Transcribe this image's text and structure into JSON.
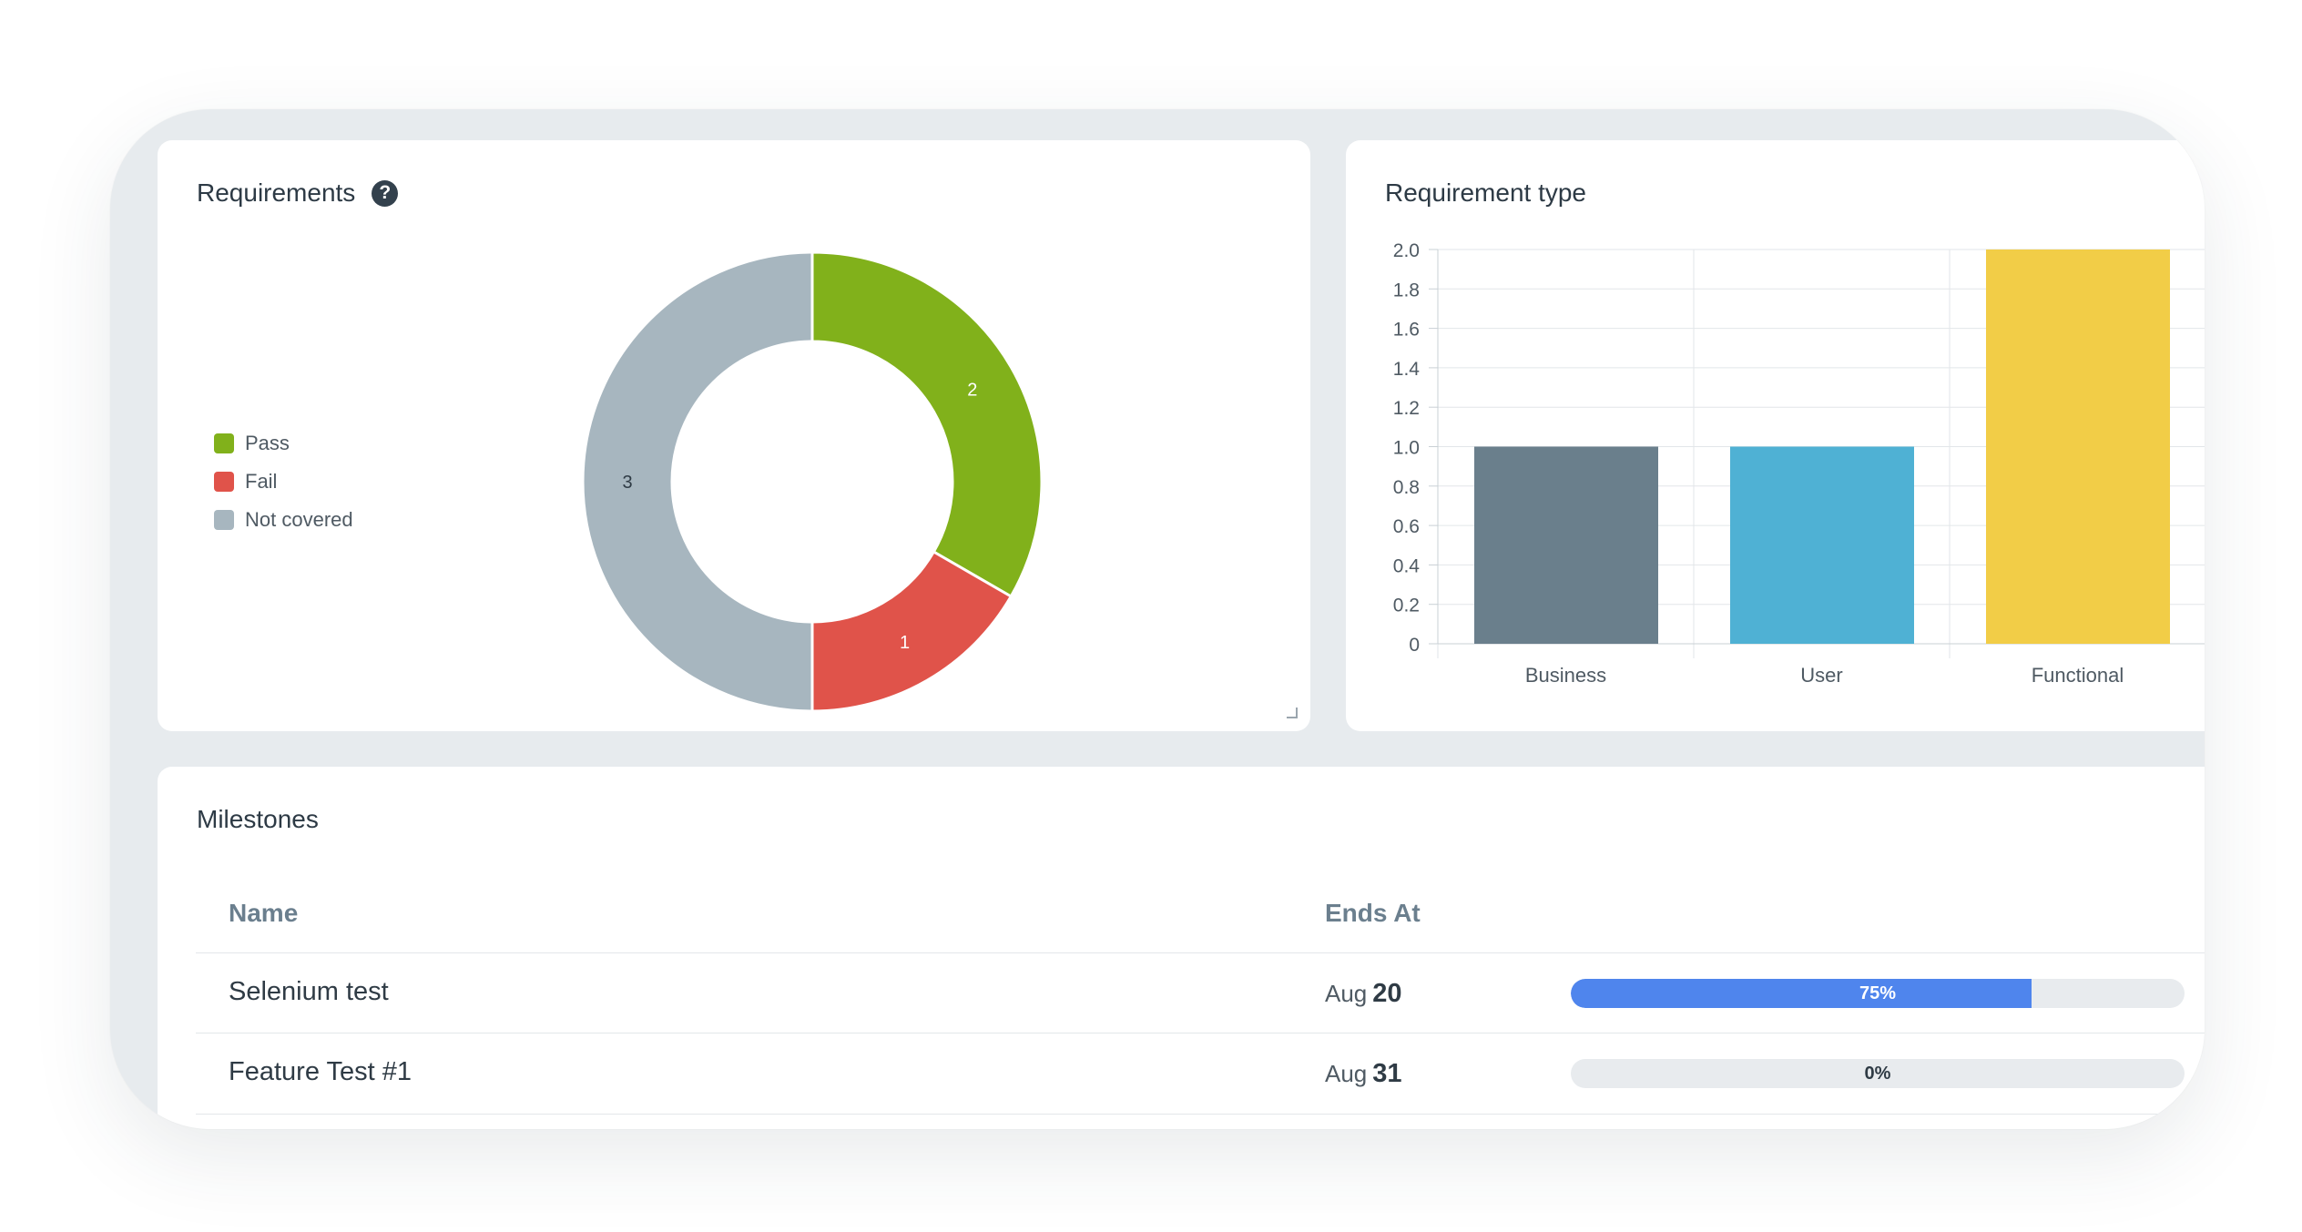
{
  "requirements_card": {
    "title": "Requirements",
    "legend": [
      {
        "label": "Pass",
        "color": "#81b11b"
      },
      {
        "label": "Fail",
        "color": "#e0534a"
      },
      {
        "label": "Not covered",
        "color": "#a7b6bf"
      }
    ]
  },
  "type_card": {
    "title": "Requirement type"
  },
  "milestones": {
    "title": "Milestones",
    "columns": {
      "name": "Name",
      "ends_at": "Ends At"
    },
    "rows": [
      {
        "name": "Selenium test",
        "month": "Aug",
        "day": "20",
        "progress": 75,
        "progress_label": "75%"
      },
      {
        "name": "Feature Test #1",
        "month": "Aug",
        "day": "31",
        "progress": 0,
        "progress_label": "0%"
      }
    ]
  },
  "chart_data": [
    {
      "type": "pie",
      "subtype": "donut",
      "categories": [
        "Pass",
        "Fail",
        "Not covered"
      ],
      "values": [
        2,
        1,
        3
      ],
      "colors": [
        "#81b11b",
        "#e0534a",
        "#a7b6bf"
      ],
      "legend": "left"
    },
    {
      "type": "bar",
      "categories": [
        "Business",
        "User",
        "Functional"
      ],
      "values": [
        1,
        1,
        2
      ],
      "colors": [
        "#6a7f8c",
        "#4fb1d4",
        "#f2cd47"
      ],
      "ylim": [
        0,
        2.0
      ],
      "yticks": [
        "0",
        "0.2",
        "0.4",
        "0.6",
        "0.8",
        "1.0",
        "1.2",
        "1.4",
        "1.6",
        "1.8",
        "2.0"
      ],
      "grid": true
    }
  ]
}
